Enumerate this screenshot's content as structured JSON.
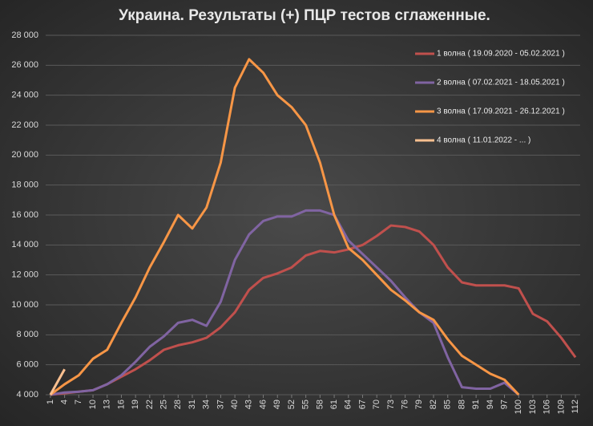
{
  "chart_data": {
    "type": "line",
    "title": "Украина. Результаты (+) ПЦР тестов сглаженные.",
    "x": [
      1,
      4,
      7,
      10,
      13,
      16,
      19,
      22,
      25,
      28,
      31,
      34,
      37,
      40,
      43,
      46,
      49,
      52,
      55,
      58,
      61,
      64,
      67,
      70,
      73,
      76,
      79,
      82,
      85,
      88,
      91,
      94,
      97,
      100,
      103,
      106,
      109,
      112
    ],
    "series": [
      {
        "name": "1 волна ( 19.09.2020 - 05.02.2021 )",
        "color": "#c0504d",
        "values": [
          4000,
          4100,
          4200,
          4300,
          4700,
          5200,
          5700,
          6300,
          7000,
          7300,
          7500,
          7800,
          8500,
          9500,
          11000,
          11800,
          12100,
          12500,
          13300,
          13600,
          13500,
          13700,
          14000,
          14600,
          15300,
          15200,
          14900,
          14000,
          12500,
          11500,
          11300,
          11300,
          11300,
          11100,
          9400,
          8900,
          7800,
          6500
        ]
      },
      {
        "name": "2 волна ( 07.02.2021 - 18.05.2021 )",
        "color": "#8064a2",
        "values": [
          4000,
          4150,
          4200,
          4300,
          4700,
          5300,
          6200,
          7200,
          7900,
          8800,
          9000,
          8600,
          10200,
          13000,
          14700,
          15600,
          15900,
          15900,
          16300,
          16300,
          16000,
          14300,
          13400,
          12500,
          11600,
          10500,
          9500,
          8800,
          6500,
          4500,
          4400,
          4400,
          4800,
          4000,
          null,
          null,
          null,
          null
        ]
      },
      {
        "name": "3 волна ( 17.09.2021 - 26.12.2021 )",
        "color": "#f79646",
        "values": [
          4000,
          4700,
          5300,
          6400,
          7000,
          8800,
          10500,
          12500,
          14200,
          16000,
          15100,
          16500,
          19500,
          24500,
          26400,
          25500,
          24000,
          23200,
          22000,
          19500,
          16000,
          13800,
          13000,
          12000,
          11000,
          10300,
          9500,
          9000,
          7700,
          6600,
          6000,
          5400,
          5000,
          4000,
          null,
          null,
          null,
          null
        ]
      },
      {
        "name": "4 волна ( 11.01.2022 - ... )",
        "color": "#fac090",
        "values": [
          4000,
          5700,
          null,
          null,
          null,
          null,
          null,
          null,
          null,
          null,
          null,
          null,
          null,
          null,
          null,
          null,
          null,
          null,
          null,
          null,
          null,
          null,
          null,
          null,
          null,
          null,
          null,
          null,
          null,
          null,
          null,
          null,
          null,
          null,
          null,
          null,
          null,
          null
        ]
      }
    ],
    "xlim": [
      0,
      113
    ],
    "xticks": [
      1,
      4,
      7,
      10,
      13,
      16,
      19,
      22,
      25,
      28,
      31,
      34,
      37,
      40,
      43,
      46,
      49,
      52,
      55,
      58,
      61,
      64,
      67,
      70,
      73,
      76,
      79,
      82,
      85,
      88,
      91,
      94,
      97,
      100,
      103,
      106,
      109,
      112
    ],
    "ylim": [
      4000,
      28000
    ],
    "yticks": [
      {
        "value": 4000,
        "label": "4 000"
      },
      {
        "value": 6000,
        "label": "6 000"
      },
      {
        "value": 8000,
        "label": "8 000"
      },
      {
        "value": 10000,
        "label": "10 000"
      },
      {
        "value": 12000,
        "label": "12 000"
      },
      {
        "value": 14000,
        "label": "14 000"
      },
      {
        "value": 16000,
        "label": "16 000"
      },
      {
        "value": 18000,
        "label": "18 000"
      },
      {
        "value": 20000,
        "label": "20 000"
      },
      {
        "value": 22000,
        "label": "22 000"
      },
      {
        "value": 24000,
        "label": "24 000"
      },
      {
        "value": 26000,
        "label": "26 000"
      },
      {
        "value": 28000,
        "label": "28 000"
      }
    ],
    "grid": true,
    "legend": "top-right"
  }
}
